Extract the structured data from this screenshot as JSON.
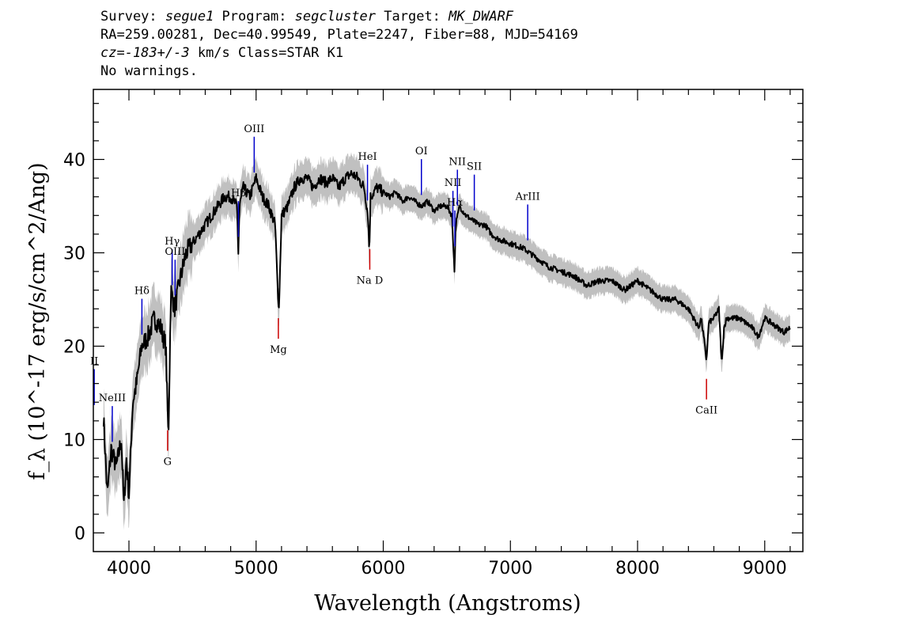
{
  "header": {
    "line1": {
      "survey_label": "Survey: ",
      "survey": "segue1",
      "program_label": " Program: ",
      "program": "segcluster",
      "target_label": " Target: ",
      "target": "MK_DWARF"
    },
    "line2": "RA=259.00281, Dec=40.99549, Plate=2247, Fiber=88, MJD=54169",
    "line3": {
      "cz": "cz=-183+/-3",
      "rest": " km/s Class=STAR K1"
    },
    "line4": "No warnings."
  },
  "chart_data": {
    "type": "line",
    "xlabel": "Wavelength (Angstroms)",
    "ylabel": "f_λ (10^-17 erg/s/cm^2/Ang)",
    "xlim": [
      3720,
      9300
    ],
    "ylim": [
      -2,
      47.5
    ],
    "xticks": [
      4000,
      5000,
      6000,
      7000,
      8000,
      9000
    ],
    "yticks": [
      0,
      10,
      20,
      30,
      40
    ],
    "colors": {
      "flux": "#000000",
      "error_band": "#c0c0c0",
      "emission_line": "#0000cc",
      "absorption_line": "#cc0000"
    },
    "series": [
      {
        "x": [
          3800,
          3830,
          3860,
          3900,
          3940,
          3960,
          3980,
          4000,
          4030,
          4060,
          4100,
          4150,
          4200,
          4250,
          4290,
          4310,
          4330,
          4360,
          4400,
          4450,
          4500,
          4550,
          4600,
          4650,
          4700,
          4750,
          4800,
          4850,
          4860,
          4870,
          4900,
          4950,
          5000,
          5050,
          5100,
          5150,
          5170,
          5180,
          5200,
          5250,
          5300,
          5350,
          5400,
          5450,
          5500,
          5550,
          5600,
          5650,
          5700,
          5750,
          5800,
          5850,
          5880,
          5890,
          5900,
          5950,
          6000,
          6050,
          6100,
          6150,
          6200,
          6250,
          6300,
          6350,
          6400,
          6450,
          6500,
          6540,
          6560,
          6570,
          6600,
          6650,
          6700,
          6750,
          6800,
          6850,
          6900,
          7000,
          7100,
          7200,
          7300,
          7400,
          7500,
          7600,
          7700,
          7800,
          7900,
          8000,
          8100,
          8200,
          8300,
          8400,
          8480,
          8500,
          8520,
          8542,
          8560,
          8600,
          8640,
          8662,
          8680,
          8700,
          8800,
          8900,
          8950,
          9000,
          9100,
          9150,
          9200
        ],
        "y": [
          12.5,
          4,
          9,
          7,
          10,
          3,
          8,
          4,
          14,
          16,
          20,
          21,
          23,
          22,
          20,
          10,
          26,
          24,
          27,
          30,
          31,
          32,
          33,
          34,
          35,
          36,
          36,
          35,
          30,
          35,
          37,
          36,
          38,
          36,
          35,
          33,
          26,
          24,
          34,
          35,
          37,
          38,
          38,
          37,
          38,
          37.5,
          38,
          37,
          38,
          38.5,
          38,
          37,
          34,
          30,
          36,
          37,
          36.5,
          36,
          36.5,
          35.5,
          36,
          35.5,
          35,
          35.5,
          34.5,
          35,
          35,
          34,
          28,
          33,
          35,
          34,
          33.5,
          33,
          33,
          32,
          31.5,
          31,
          30.5,
          29.5,
          28.5,
          28,
          27.5,
          26.5,
          27,
          27,
          26,
          27,
          26,
          25,
          25,
          24,
          22,
          23,
          21,
          18.5,
          22.5,
          23,
          24,
          18,
          22,
          23,
          23,
          22,
          21,
          23,
          22,
          21.5,
          22
        ]
      }
    ],
    "line_labels": {
      "emission": [
        {
          "label": "II",
          "x": 3727
        },
        {
          "label": "NeIII",
          "x": 3869
        },
        {
          "label": "Hδ",
          "x": 4102
        },
        {
          "label": "Hγ",
          "x": 4340
        },
        {
          "label": "OIII",
          "x": 4363
        },
        {
          "label": "Hβ",
          "x": 4861
        },
        {
          "label": "OIII",
          "x": 4985
        },
        {
          "label": "HeI",
          "x": 5876
        },
        {
          "label": "OI",
          "x": 6300
        },
        {
          "label": "NII",
          "x": 6548
        },
        {
          "label": "Hα",
          "x": 6563
        },
        {
          "label": "NII",
          "x": 6583
        },
        {
          "label": "SII",
          "x": 6716
        },
        {
          "label": "ArIII",
          "x": 7136
        }
      ],
      "absorption": [
        {
          "label": "G",
          "x": 4304
        },
        {
          "label": "Mg",
          "x": 5175
        },
        {
          "label": "Na D",
          "x": 5894
        },
        {
          "label": "CaII",
          "x": 8542
        }
      ]
    }
  }
}
